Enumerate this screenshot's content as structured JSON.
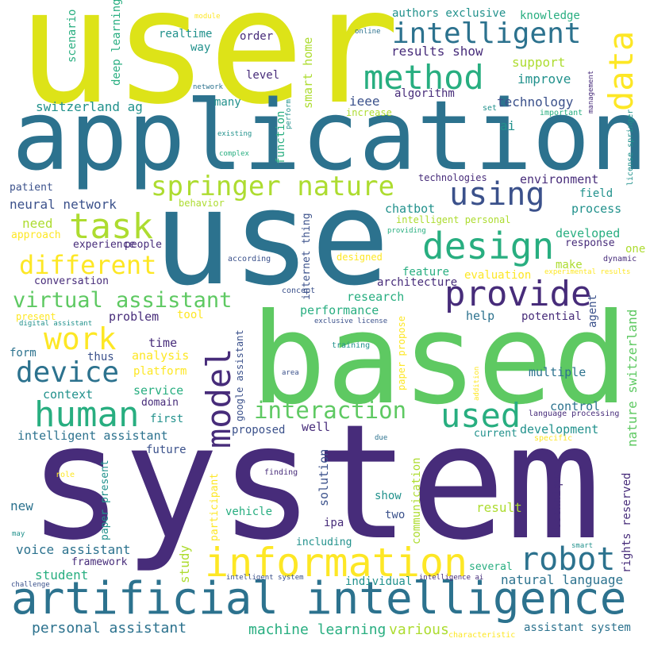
{
  "palette": {
    "purple": "#472c7a",
    "darkblue": "#3b518b",
    "blue": "#2c728e",
    "teal": "#21918c",
    "green": "#28ae80",
    "lightgreen": "#5ec962",
    "lime": "#addc30",
    "yellow": "#dde318",
    "gold": "#fde725"
  },
  "words": [
    {
      "text": "user",
      "color": "yellow",
      "vertical": false
    },
    {
      "text": "application",
      "color": "blue",
      "vertical": false
    },
    {
      "text": "use",
      "color": "blue",
      "vertical": false
    },
    {
      "text": "based",
      "color": "lightgreen",
      "vertical": false
    },
    {
      "text": "system",
      "color": "purple",
      "vertical": false
    },
    {
      "text": "artificial intelligence",
      "color": "blue",
      "vertical": false
    },
    {
      "text": "information",
      "color": "gold",
      "vertical": false
    },
    {
      "text": "model",
      "color": "purple",
      "vertical": true
    },
    {
      "text": "provide",
      "color": "purple",
      "vertical": false
    },
    {
      "text": "design",
      "color": "green",
      "vertical": false
    },
    {
      "text": "intelligent",
      "color": "blue",
      "vertical": false
    },
    {
      "text": "method",
      "color": "green",
      "vertical": false
    },
    {
      "text": "data",
      "color": "gold",
      "vertical": true
    },
    {
      "text": "springer nature",
      "color": "lime",
      "vertical": false
    },
    {
      "text": "using",
      "color": "darkblue",
      "vertical": false
    },
    {
      "text": "task",
      "color": "lime",
      "vertical": false
    },
    {
      "text": "human",
      "color": "green",
      "vertical": false
    },
    {
      "text": "used",
      "color": "green",
      "vertical": false
    },
    {
      "text": "robot",
      "color": "blue",
      "vertical": false
    },
    {
      "text": "device",
      "color": "blue",
      "vertical": false
    },
    {
      "text": "work",
      "color": "gold",
      "vertical": false
    },
    {
      "text": "virtual assistant",
      "color": "lightgreen",
      "vertical": false
    },
    {
      "text": "different",
      "color": "gold",
      "vertical": false
    },
    {
      "text": "interaction",
      "color": "lightgreen",
      "vertical": false
    },
    {
      "text": "natural language",
      "color": "blue",
      "vertical": false
    },
    {
      "text": "personal assistant",
      "color": "blue",
      "vertical": false
    },
    {
      "text": "machine learning",
      "color": "green",
      "vertical": false
    },
    {
      "text": "various",
      "color": "lime",
      "vertical": false
    },
    {
      "text": "assistant system",
      "color": "blue",
      "vertical": false
    },
    {
      "text": "authors exclusive",
      "color": "teal",
      "vertical": false
    },
    {
      "text": "knowledge",
      "color": "green",
      "vertical": false
    },
    {
      "text": "realtime",
      "color": "teal",
      "vertical": false
    },
    {
      "text": "order",
      "color": "purple",
      "vertical": false
    },
    {
      "text": "results show",
      "color": "purple",
      "vertical": false
    },
    {
      "text": "support",
      "color": "lime",
      "vertical": false
    },
    {
      "text": "improve",
      "color": "teal",
      "vertical": false
    },
    {
      "text": "way",
      "color": "teal",
      "vertical": false
    },
    {
      "text": "level",
      "color": "purple",
      "vertical": false
    },
    {
      "text": "switzerland ag",
      "color": "teal",
      "vertical": false
    },
    {
      "text": "many",
      "color": "teal",
      "vertical": false
    },
    {
      "text": "ieee",
      "color": "darkblue",
      "vertical": false
    },
    {
      "text": "algorithm",
      "color": "purple",
      "vertical": false
    },
    {
      "text": "technology",
      "color": "darkblue",
      "vertical": false
    },
    {
      "text": "increase",
      "color": "lime",
      "vertical": false
    },
    {
      "text": "set",
      "color": "teal",
      "vertical": false
    },
    {
      "text": "important",
      "color": "green",
      "vertical": false
    },
    {
      "text": "ai",
      "color": "teal",
      "vertical": false
    },
    {
      "text": "technologies",
      "color": "purple",
      "vertical": false
    },
    {
      "text": "environment",
      "color": "purple",
      "vertical": false
    },
    {
      "text": "field",
      "color": "teal",
      "vertical": false
    },
    {
      "text": "process",
      "color": "teal",
      "vertical": false
    },
    {
      "text": "patient",
      "color": "darkblue",
      "vertical": false
    },
    {
      "text": "behavior",
      "color": "lime",
      "vertical": false
    },
    {
      "text": "neural network",
      "color": "darkblue",
      "vertical": false
    },
    {
      "text": "chatbot",
      "color": "teal",
      "vertical": false
    },
    {
      "text": "intelligent personal",
      "color": "lime",
      "vertical": false
    },
    {
      "text": "need",
      "color": "lime",
      "vertical": false
    },
    {
      "text": "approach",
      "color": "gold",
      "vertical": false
    },
    {
      "text": "experience",
      "color": "purple",
      "vertical": false
    },
    {
      "text": "people",
      "color": "purple",
      "vertical": false
    },
    {
      "text": "developed",
      "color": "green",
      "vertical": false
    },
    {
      "text": "response",
      "color": "purple",
      "vertical": false
    },
    {
      "text": "one",
      "color": "lime",
      "vertical": false
    },
    {
      "text": "according",
      "color": "darkblue",
      "vertical": false
    },
    {
      "text": "designed",
      "color": "gold",
      "vertical": false
    },
    {
      "text": "make",
      "color": "lime",
      "vertical": false
    },
    {
      "text": "dynamic",
      "color": "purple",
      "vertical": false
    },
    {
      "text": "feature",
      "color": "green",
      "vertical": false
    },
    {
      "text": "evaluation",
      "color": "gold",
      "vertical": false
    },
    {
      "text": "experimental results",
      "color": "gold",
      "vertical": false
    },
    {
      "text": "conversation",
      "color": "purple",
      "vertical": false
    },
    {
      "text": "architecture",
      "color": "purple",
      "vertical": false
    },
    {
      "text": "concept",
      "color": "darkblue",
      "vertical": false
    },
    {
      "text": "research",
      "color": "green",
      "vertical": false
    },
    {
      "text": "performance",
      "color": "green",
      "vertical": false
    },
    {
      "text": "agent",
      "color": "darkblue",
      "vertical": false
    },
    {
      "text": "problem",
      "color": "purple",
      "vertical": false
    },
    {
      "text": "tool",
      "color": "gold",
      "vertical": false
    },
    {
      "text": "present",
      "color": "gold",
      "vertical": false
    },
    {
      "text": "digital assistant",
      "color": "teal",
      "vertical": false
    },
    {
      "text": "exclusive license",
      "color": "darkblue",
      "vertical": false
    },
    {
      "text": "help",
      "color": "blue",
      "vertical": false
    },
    {
      "text": "potential",
      "color": "purple",
      "vertical": false
    },
    {
      "text": "time",
      "color": "purple",
      "vertical": false
    },
    {
      "text": "analysis",
      "color": "gold",
      "vertical": false
    },
    {
      "text": "form",
      "color": "blue",
      "vertical": false
    },
    {
      "text": "thus",
      "color": "darkblue",
      "vertical": false
    },
    {
      "text": "training",
      "color": "teal",
      "vertical": false
    },
    {
      "text": "platform",
      "color": "gold",
      "vertical": false
    },
    {
      "text": "multiple",
      "color": "blue",
      "vertical": false
    },
    {
      "text": "area",
      "color": "darkblue",
      "vertical": false
    },
    {
      "text": "context",
      "color": "teal",
      "vertical": false
    },
    {
      "text": "service",
      "color": "green",
      "vertical": false
    },
    {
      "text": "domain",
      "color": "purple",
      "vertical": false
    },
    {
      "text": "control",
      "color": "blue",
      "vertical": false
    },
    {
      "text": "language processing",
      "color": "purple",
      "vertical": false
    },
    {
      "text": "first",
      "color": "teal",
      "vertical": false
    },
    {
      "text": "development",
      "color": "teal",
      "vertical": false
    },
    {
      "text": "intelligent assistant",
      "color": "blue",
      "vertical": false
    },
    {
      "text": "proposed",
      "color": "darkblue",
      "vertical": false
    },
    {
      "text": "well",
      "color": "purple",
      "vertical": false
    },
    {
      "text": "current",
      "color": "teal",
      "vertical": false
    },
    {
      "text": "future",
      "color": "darkblue",
      "vertical": false
    },
    {
      "text": "due",
      "color": "blue",
      "vertical": false
    },
    {
      "text": "specific",
      "color": "gold",
      "vertical": false
    },
    {
      "text": "solution",
      "color": "darkblue",
      "vertical": false
    },
    {
      "text": "role",
      "color": "gold",
      "vertical": false
    },
    {
      "text": "finding",
      "color": "purple",
      "vertical": false
    },
    {
      "text": "show",
      "color": "teal",
      "vertical": false
    },
    {
      "text": "new",
      "color": "blue",
      "vertical": false
    },
    {
      "text": "result",
      "color": "lime",
      "vertical": false
    },
    {
      "text": "vehicle",
      "color": "green",
      "vertical": false
    },
    {
      "text": "two",
      "color": "darkblue",
      "vertical": false
    },
    {
      "text": "ipa",
      "color": "purple",
      "vertical": false
    },
    {
      "text": "may",
      "color": "teal",
      "vertical": false
    },
    {
      "text": "voice assistant",
      "color": "blue",
      "vertical": false
    },
    {
      "text": "including",
      "color": "teal",
      "vertical": false
    },
    {
      "text": "smart",
      "color": "teal",
      "vertical": false
    },
    {
      "text": "framework",
      "color": "purple",
      "vertical": false
    },
    {
      "text": "several",
      "color": "green",
      "vertical": false
    },
    {
      "text": "student",
      "color": "green",
      "vertical": false
    },
    {
      "text": "challenge",
      "color": "darkblue",
      "vertical": false
    },
    {
      "text": "intelligent system",
      "color": "darkblue",
      "vertical": false
    },
    {
      "text": "individual",
      "color": "teal",
      "vertical": false
    },
    {
      "text": "intelligence ai",
      "color": "purple",
      "vertical": false
    },
    {
      "text": "characteristic",
      "color": "gold",
      "vertical": false
    },
    {
      "text": "module",
      "color": "gold",
      "vertical": false
    },
    {
      "text": "online",
      "color": "blue",
      "vertical": false
    },
    {
      "text": "network",
      "color": "blue",
      "vertical": false
    },
    {
      "text": "complex",
      "color": "green",
      "vertical": false
    },
    {
      "text": "existing",
      "color": "teal",
      "vertical": false
    },
    {
      "text": "providing",
      "color": "green",
      "vertical": false
    },
    {
      "text": "scenario",
      "color": "green",
      "vertical": true
    },
    {
      "text": "deep learning",
      "color": "green",
      "vertical": true
    },
    {
      "text": "smart home",
      "color": "lime",
      "vertical": true
    },
    {
      "text": "function",
      "color": "green",
      "vertical": true
    },
    {
      "text": "perform",
      "color": "teal",
      "vertical": true
    },
    {
      "text": "internet thing",
      "color": "darkblue",
      "vertical": true
    },
    {
      "text": "google assistant",
      "color": "darkblue",
      "vertical": true
    },
    {
      "text": "paper propose",
      "color": "gold",
      "vertical": true
    },
    {
      "text": "addition",
      "color": "gold",
      "vertical": true
    },
    {
      "text": "management",
      "color": "purple",
      "vertical": true
    },
    {
      "text": "license springer",
      "color": "teal",
      "vertical": true
    },
    {
      "text": "nature switzerland",
      "color": "lightgreen",
      "vertical": true
    },
    {
      "text": "communication",
      "color": "lime",
      "vertical": true
    },
    {
      "text": "technique",
      "color": "purple",
      "vertical": true
    },
    {
      "text": "rights reserved",
      "color": "purple",
      "vertical": true
    },
    {
      "text": "paper present",
      "color": "teal",
      "vertical": true
    },
    {
      "text": "participant",
      "color": "gold",
      "vertical": true
    },
    {
      "text": "study",
      "color": "lime",
      "vertical": true
    }
  ]
}
